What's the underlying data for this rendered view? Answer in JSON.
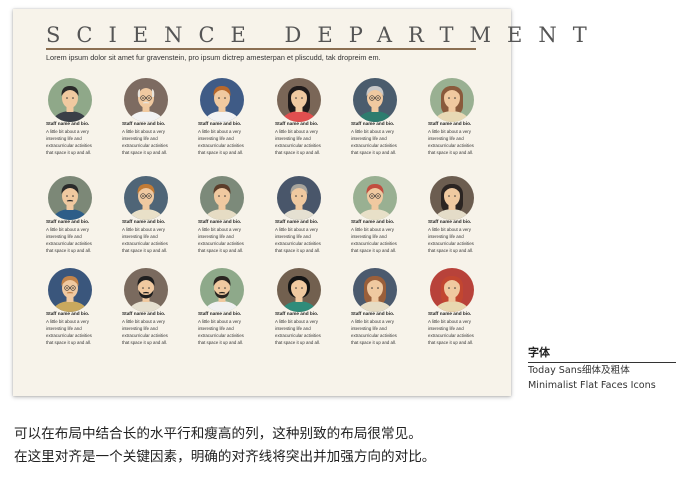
{
  "poster": {
    "title": "SCIENCE DEPARTMENT",
    "subtitle": "Lorem ipsum dolor sit amet fur gravenstein, pro ipsum dictrep amesterpan et pliscudd, tak dropreim em."
  },
  "staff_card": {
    "name_label": "Staff name and bio.",
    "bio_text": "A little bit about a very interesting life and extracurricular activities that space it up and all."
  },
  "faces": [
    {
      "icon": "man-dark-hair-suit-icon",
      "bg": "#8fa889",
      "skin": "#f0c9a0",
      "hair": "#2a2a2a",
      "shirt": "#3a3f48",
      "style": "short",
      "glasses": false,
      "beard": false,
      "mustache": false
    },
    {
      "icon": "older-man-glasses-icon",
      "bg": "#7d6b61",
      "skin": "#f0c9a0",
      "hair": "#e8e4dc",
      "shirt": "#f2f2f2",
      "style": "balding",
      "glasses": true,
      "beard": false,
      "mustache": true
    },
    {
      "icon": "man-ginger-hair-icon",
      "bg": "#3f5b86",
      "skin": "#f0c9a0",
      "hair": "#b8682b",
      "shirt": "#f2f2f2",
      "style": "short",
      "glasses": false,
      "beard": false,
      "mustache": false
    },
    {
      "icon": "woman-long-black-hair-icon",
      "bg": "#7a6657",
      "skin": "#f0c9a0",
      "hair": "#1f1a1a",
      "shirt": "#e14f4f",
      "style": "long",
      "glasses": false,
      "beard": false,
      "mustache": false
    },
    {
      "icon": "older-man-gray-hair-glasses-icon",
      "bg": "#4a5c6d",
      "skin": "#f0c9a0",
      "hair": "#c8c8c8",
      "shirt": "#2d7c6e",
      "style": "short",
      "glasses": true,
      "beard": false,
      "mustache": false
    },
    {
      "icon": "woman-brown-hair-icon",
      "bg": "#99b092",
      "skin": "#f0c9a0",
      "hair": "#8a5a3c",
      "shirt": "#e8d9b5",
      "style": "long",
      "glasses": false,
      "beard": false,
      "mustache": false
    },
    {
      "icon": "man-goatee-icon",
      "bg": "#7c8877",
      "skin": "#f0c9a0",
      "hair": "#2a2a2a",
      "shirt": "#2d5d88",
      "style": "short",
      "glasses": false,
      "beard": false,
      "mustache": true
    },
    {
      "icon": "man-ginger-glasses-icon",
      "bg": "#4f6577",
      "skin": "#f0c9a0",
      "hair": "#c27b35",
      "shirt": "#e9e0c8",
      "style": "short",
      "glasses": true,
      "beard": false,
      "mustache": false
    },
    {
      "icon": "man-brown-hair-icon",
      "bg": "#7c8a7a",
      "skin": "#f0c9a0",
      "hair": "#5b3d2a",
      "shirt": "#e6dcc4",
      "style": "short",
      "glasses": false,
      "beard": false,
      "mustache": false
    },
    {
      "icon": "man-gray-hair-icon",
      "bg": "#49566a",
      "skin": "#f0c9a0",
      "hair": "#a7a49c",
      "shirt": "#e5e0d2",
      "style": "short",
      "glasses": false,
      "beard": false,
      "mustache": false
    },
    {
      "icon": "woman-red-hair-glasses-icon",
      "bg": "#99b092",
      "skin": "#f0c9a0",
      "hair": "#c24d3f",
      "shirt": "#e8e0c8",
      "style": "short",
      "glasses": true,
      "beard": false,
      "mustache": false
    },
    {
      "icon": "woman-long-dark-hair-icon",
      "bg": "#6c5d50",
      "skin": "#f0c9a0",
      "hair": "#2b2422",
      "shirt": "#e4dcc8",
      "style": "long",
      "glasses": false,
      "beard": false,
      "mustache": false
    },
    {
      "icon": "man-ginger-glasses-beard-icon",
      "bg": "#3a567c",
      "skin": "#f0c9a0",
      "hair": "#c3844a",
      "shirt": "#c9a95e",
      "style": "short",
      "glasses": true,
      "beard": false,
      "mustache": true
    },
    {
      "icon": "man-black-beard-icon",
      "bg": "#7a6a5e",
      "skin": "#f0c9a0",
      "hair": "#1f1f1f",
      "shirt": "#e6e0d0",
      "style": "short",
      "glasses": false,
      "beard": true,
      "mustache": true
    },
    {
      "icon": "man-dark-beard-icon",
      "bg": "#8ea98a",
      "skin": "#f0c9a0",
      "hair": "#2a2420",
      "shirt": "#f0f0f0",
      "style": "short",
      "glasses": false,
      "beard": true,
      "mustache": true
    },
    {
      "icon": "woman-black-bob-hair-icon",
      "bg": "#72604f",
      "skin": "#f0c9a0",
      "hair": "#141414",
      "shirt": "#2f8c7a",
      "style": "bob",
      "glasses": false,
      "beard": false,
      "mustache": false
    },
    {
      "icon": "woman-auburn-hair-icon",
      "bg": "#4b5a6e",
      "skin": "#f0c9a0",
      "hair": "#9a5f3a",
      "shirt": "#e6dcc4",
      "style": "long",
      "glasses": false,
      "beard": false,
      "mustache": false
    },
    {
      "icon": "woman-red-hair-icon",
      "bg": "#b8423a",
      "skin": "#f0c9a0",
      "hair": "#c24630",
      "shirt": "#e8d8b0",
      "style": "long",
      "glasses": false,
      "beard": false,
      "mustache": false
    }
  ],
  "font_info": {
    "heading": "字体",
    "font_name": "Today Sans细体及粗体",
    "icon_set": "Minimalist Flat Faces Icons"
  },
  "caption": {
    "line1": "可以在布局中结合长的水平行和瘦高的列，这种别致的布局很常见。",
    "line2": "在这里对齐是一个关键因素，明确的对齐线将突出并加强方向的对比。"
  }
}
